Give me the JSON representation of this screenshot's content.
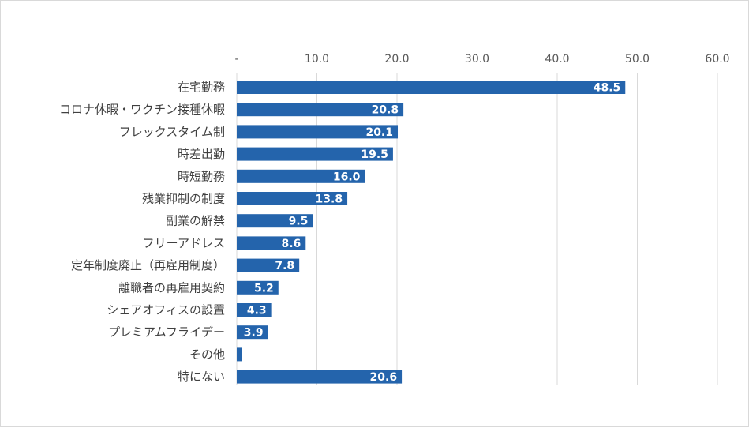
{
  "chart_data": {
    "type": "bar",
    "orientation": "horizontal",
    "title": "",
    "xlabel": "",
    "ylabel": "",
    "xlim": [
      0,
      60
    ],
    "x_ticks": [
      0,
      10,
      20,
      30,
      40,
      50,
      60
    ],
    "x_tick_labels": [
      "-",
      "10.0",
      "20.0",
      "30.0",
      "40.0",
      "50.0",
      "60.0"
    ],
    "axis_position": "top",
    "grid": true,
    "bar_color": "#2464ac",
    "categories": [
      "在宅勤務",
      "コロナ休暇・ワクチン接種休暇",
      "フレックスタイム制",
      "時差出勤",
      "時短勤務",
      "残業抑制の制度",
      "副業の解禁",
      "フリーアドレス",
      "定年制度廃止（再雇用制度）",
      "離職者の再雇用契約",
      "シェアオフィスの設置",
      "プレミアムフライデー",
      "その他",
      "特にない"
    ],
    "values": [
      48.5,
      20.8,
      20.1,
      19.5,
      16.0,
      13.8,
      9.5,
      8.6,
      7.8,
      5.2,
      4.3,
      3.9,
      0.6,
      20.6
    ],
    "data_labels": [
      "48.5",
      "20.8",
      "20.1",
      "19.5",
      "16.0",
      "13.8",
      "9.5",
      "8.6",
      "7.8",
      "5.2",
      "4.3",
      "3.9",
      "",
      "20.6"
    ]
  }
}
